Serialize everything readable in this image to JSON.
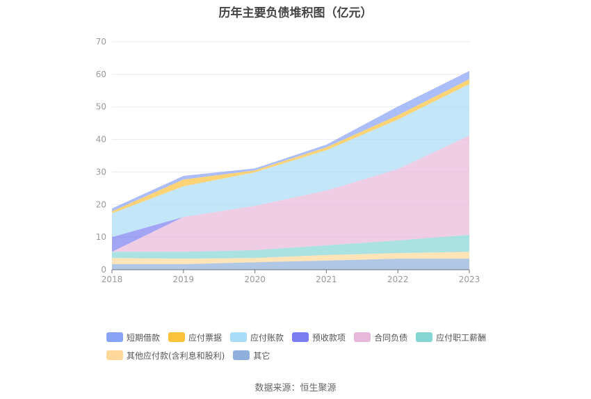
{
  "chart_data": {
    "type": "area",
    "stacked": true,
    "title": "历年主要负债堆积图（亿元）",
    "xlabel": "",
    "ylabel": "",
    "categories": [
      "2018",
      "2019",
      "2020",
      "2021",
      "2022",
      "2023"
    ],
    "ylim": [
      0,
      70
    ],
    "yticks": [
      "0",
      "10",
      "20",
      "30",
      "40",
      "50",
      "60",
      "70"
    ],
    "grid": true,
    "legend_position": "bottom",
    "series": [
      {
        "name": "其它",
        "color": "#8fb0dc",
        "values": [
          1.7,
          1.7,
          2.3,
          2.8,
          3.4,
          3.4
        ]
      },
      {
        "name": "其他应付款(含利息和股利)",
        "color": "#ffd89a",
        "values": [
          1.9,
          1.7,
          1.3,
          1.7,
          1.7,
          2.1
        ]
      },
      {
        "name": "应付职工薪酬",
        "color": "#86d6d6",
        "values": [
          1.9,
          2.1,
          2.4,
          3.0,
          3.9,
          5.2
        ]
      },
      {
        "name": "合同负债",
        "color": "#e8b8da",
        "values": [
          0,
          10.7,
          13.6,
          16.8,
          21.9,
          30.5
        ]
      },
      {
        "name": "预收款项",
        "color": "#7b7ef0",
        "values": [
          4.5,
          0,
          0,
          0,
          0,
          0
        ]
      },
      {
        "name": "应付账款",
        "color": "#a9dcf7",
        "values": [
          7.3,
          9.4,
          10.3,
          12.4,
          15.2,
          15.8
        ]
      },
      {
        "name": "应付票据",
        "color": "#fbc23c",
        "values": [
          0.6,
          2.1,
          0.6,
          0.9,
          1.3,
          1.5
        ]
      },
      {
        "name": "短期借款",
        "color": "#89a3f6",
        "values": [
          0.9,
          1.1,
          0.6,
          0.8,
          2.7,
          2.5
        ]
      }
    ],
    "legend_order": [
      "短期借款",
      "应付票据",
      "应付账款",
      "预收款项",
      "合同负债",
      "应付职工薪酬",
      "其他应付款(含利息和股利)",
      "其它"
    ]
  },
  "source": "数据来源：恒生聚源"
}
